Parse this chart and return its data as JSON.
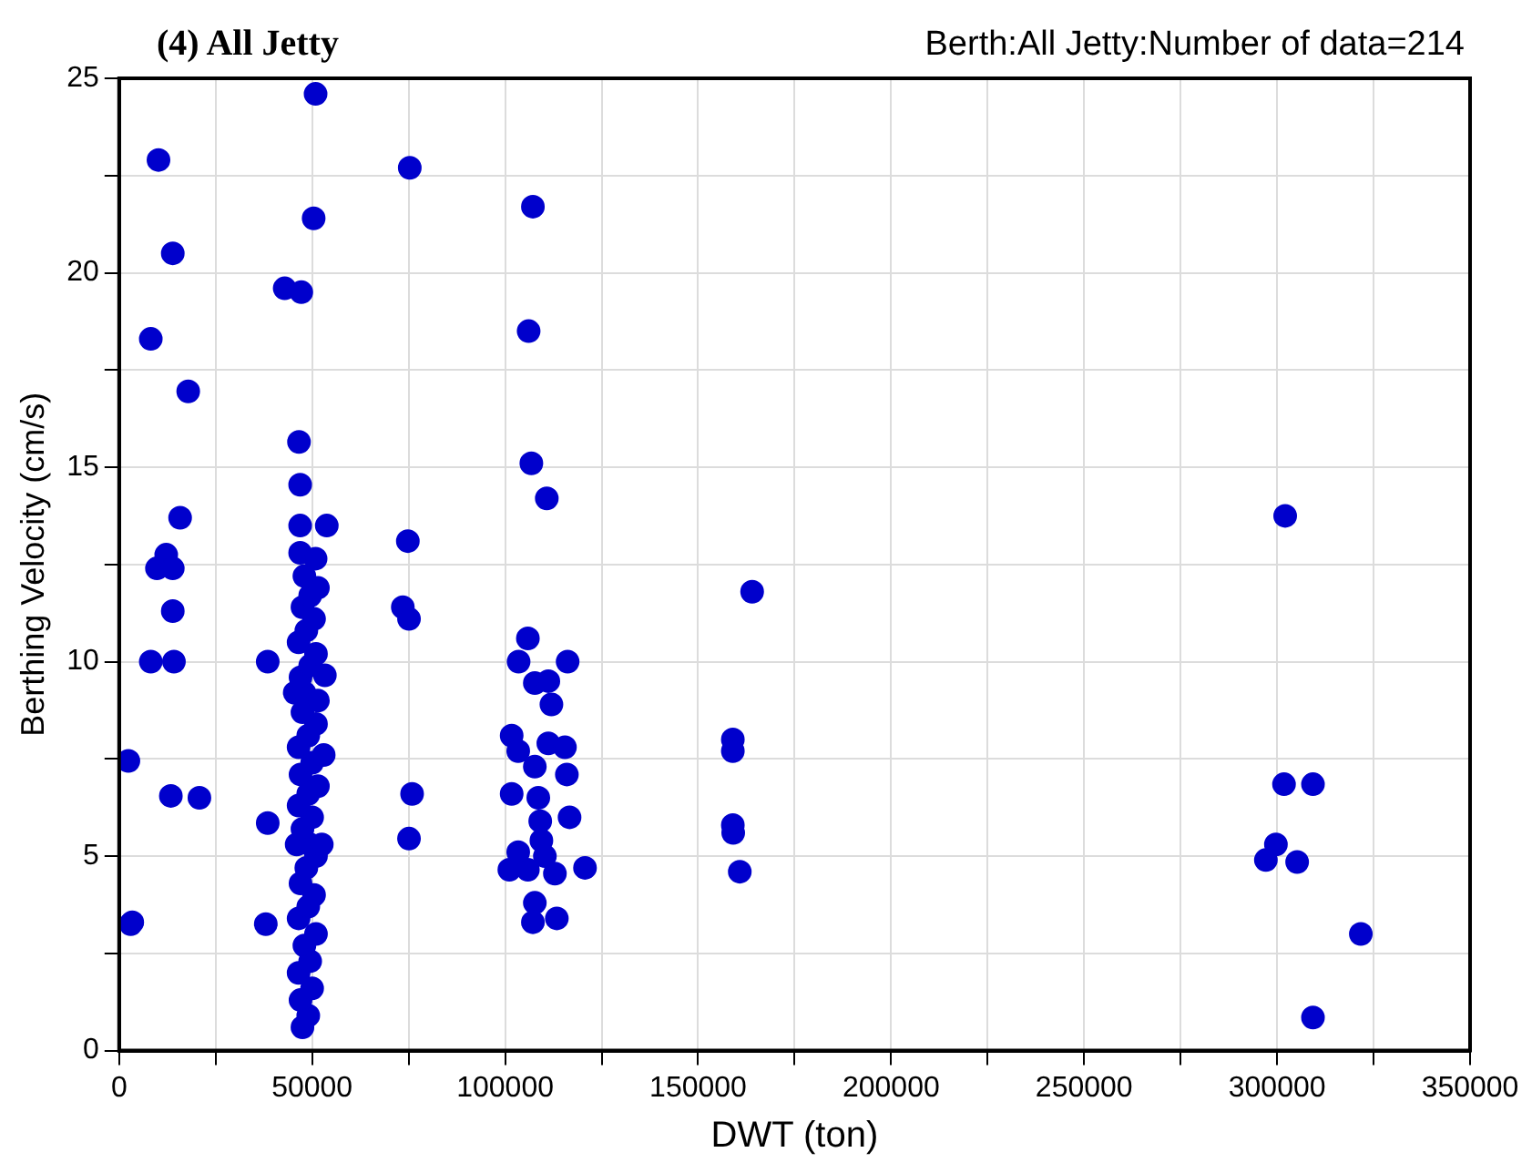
{
  "chart_data": {
    "type": "scatter",
    "title": "(4) All Jetty",
    "subtitle": "Berth:All Jetty:Number of data=214",
    "xlabel": "DWT (ton)",
    "ylabel": "Berthing Velocity (cm/s)",
    "xlim": [
      0,
      350000
    ],
    "xticks": [
      0,
      {
        "value": 25000,
        "label": null
      },
      50000,
      {
        "value": 75000,
        "label": null
      },
      100000,
      {
        "value": 125000,
        "label": null
      },
      150000,
      {
        "value": 175000,
        "label": null
      },
      200000,
      {
        "value": 225000,
        "label": null
      },
      250000,
      {
        "value": 275000,
        "label": null
      },
      300000,
      {
        "value": 325000,
        "label": null
      },
      350000
    ],
    "ylim": [
      0,
      25
    ],
    "yticks": [
      0,
      {
        "value": 2.5,
        "label": null
      },
      5,
      {
        "value": 7.5,
        "label": null
      },
      10,
      {
        "value": 12.5,
        "label": null
      },
      15,
      {
        "value": 17.5,
        "label": null
      },
      20,
      {
        "value": 22.5,
        "label": null
      },
      25
    ],
    "grid": true,
    "marker": "circle",
    "legend": false,
    "series": [
      {
        "color": "#0000cc",
        "x": [
          2400,
          3000,
          3400,
          8200,
          8200,
          9800,
          10200,
          12200,
          13400,
          13900,
          13900,
          13900,
          14200,
          15800,
          17900,
          20800,
          38000,
          38500,
          38500,
          42900,
          46600,
          46900,
          46900,
          46900,
          47200,
          50400,
          50900,
          50900,
          53300,
          53800,
          73500,
          74800,
          75100,
          75100,
          75300,
          75900,
          47500,
          49000,
          47000,
          50000,
          46500,
          49500,
          48000,
          51000,
          46500,
          49000,
          50500,
          47000,
          48500,
          51000,
          46000,
          49500,
          52500,
          47500,
          50000,
          46500,
          49000,
          51500,
          47000,
          50000,
          53000,
          46500,
          49000,
          51000,
          47500,
          45500,
          48000,
          51500,
          47000,
          49500,
          51000,
          46500,
          48500,
          50500,
          47500,
          49500,
          51500,
          48000,
          107200,
          106100,
          106800,
          110800,
          105900,
          103500,
          116200,
          107700,
          111200,
          112000,
          101700,
          111200,
          115500,
          103400,
          107700,
          116000,
          101700,
          108600,
          116700,
          109100,
          109400,
          103400,
          101100,
          112900,
          120700,
          107700,
          107200,
          113400,
          105900,
          110300,
          159000,
          159000,
          159000,
          159100,
          160800,
          164000,
          302100,
          301800,
          309300,
          299700,
          297100,
          305200,
          321700,
          309300
        ],
        "values": [
          7.45,
          3.25,
          3.3,
          18.3,
          10.0,
          12.4,
          22.9,
          12.75,
          6.55,
          20.5,
          12.4,
          11.3,
          10.0,
          13.7,
          16.95,
          6.5,
          3.25,
          10.0,
          5.85,
          19.6,
          15.65,
          14.55,
          13.5,
          12.8,
          19.5,
          21.4,
          24.6,
          12.65,
          9.65,
          13.5,
          11.4,
          13.1,
          11.1,
          5.45,
          22.7,
          6.6,
          0.6,
          0.9,
          1.3,
          1.6,
          2.0,
          2.3,
          2.7,
          3.0,
          3.4,
          3.7,
          4.0,
          4.3,
          4.7,
          5.0,
          5.3,
          5.3,
          5.3,
          5.7,
          6.0,
          6.3,
          6.6,
          6.8,
          7.1,
          7.4,
          7.6,
          7.8,
          8.1,
          8.4,
          8.7,
          9.2,
          9.2,
          9.0,
          9.6,
          9.9,
          10.2,
          10.5,
          10.8,
          11.1,
          11.4,
          11.7,
          11.9,
          12.2,
          21.7,
          18.5,
          15.1,
          14.2,
          10.6,
          10.0,
          10.0,
          9.45,
          9.5,
          8.9,
          8.1,
          7.9,
          7.8,
          7.7,
          7.3,
          7.1,
          6.6,
          6.5,
          6.0,
          5.9,
          5.4,
          5.1,
          4.65,
          4.55,
          4.7,
          3.8,
          3.3,
          3.4,
          4.65,
          5.0,
          8.0,
          7.7,
          5.8,
          5.6,
          4.6,
          11.8,
          13.75,
          6.85,
          6.85,
          5.3,
          4.9,
          4.85,
          3.0,
          0.85
        ]
      }
    ]
  }
}
